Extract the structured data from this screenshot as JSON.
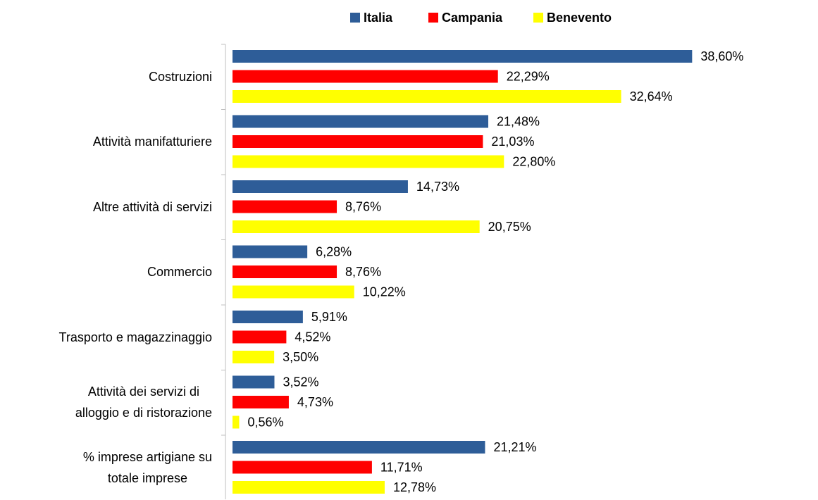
{
  "chart_data": {
    "type": "hbar",
    "categories": [
      "Costruzioni",
      "Attività manifatturiere",
      "Altre attività di servizi",
      "Commercio",
      "Trasporto e magazzinaggio",
      "Attività dei servizi di\nalloggio e di ristorazione",
      "% imprese artigiane su\ntotale imprese"
    ],
    "series": [
      {
        "name": "Italia",
        "color": "#2e5d98",
        "values": [
          38.6,
          21.48,
          14.73,
          6.28,
          5.91,
          3.52,
          21.21
        ],
        "value_labels": [
          "38,60%",
          "21,48%",
          "14,73%",
          "6,28%",
          "5,91%",
          "3,52%",
          "21,21%"
        ]
      },
      {
        "name": "Campania",
        "color": "#ff0000",
        "values": [
          22.29,
          21.03,
          8.76,
          8.76,
          4.52,
          4.73,
          11.71
        ],
        "value_labels": [
          "22,29%",
          "21,03%",
          "8,76%",
          "8,76%",
          "4,52%",
          "4,73%",
          "11,71%"
        ]
      },
      {
        "name": "Benevento",
        "color": "#ffff00",
        "values": [
          32.64,
          22.8,
          20.75,
          10.22,
          3.5,
          0.56,
          12.78
        ],
        "value_labels": [
          "32,64%",
          "22,80%",
          "20,75%",
          "10,22%",
          "3,50%",
          "0,56%",
          "12,78%"
        ]
      }
    ],
    "xlim": [
      0,
      40
    ],
    "legend": "top"
  }
}
